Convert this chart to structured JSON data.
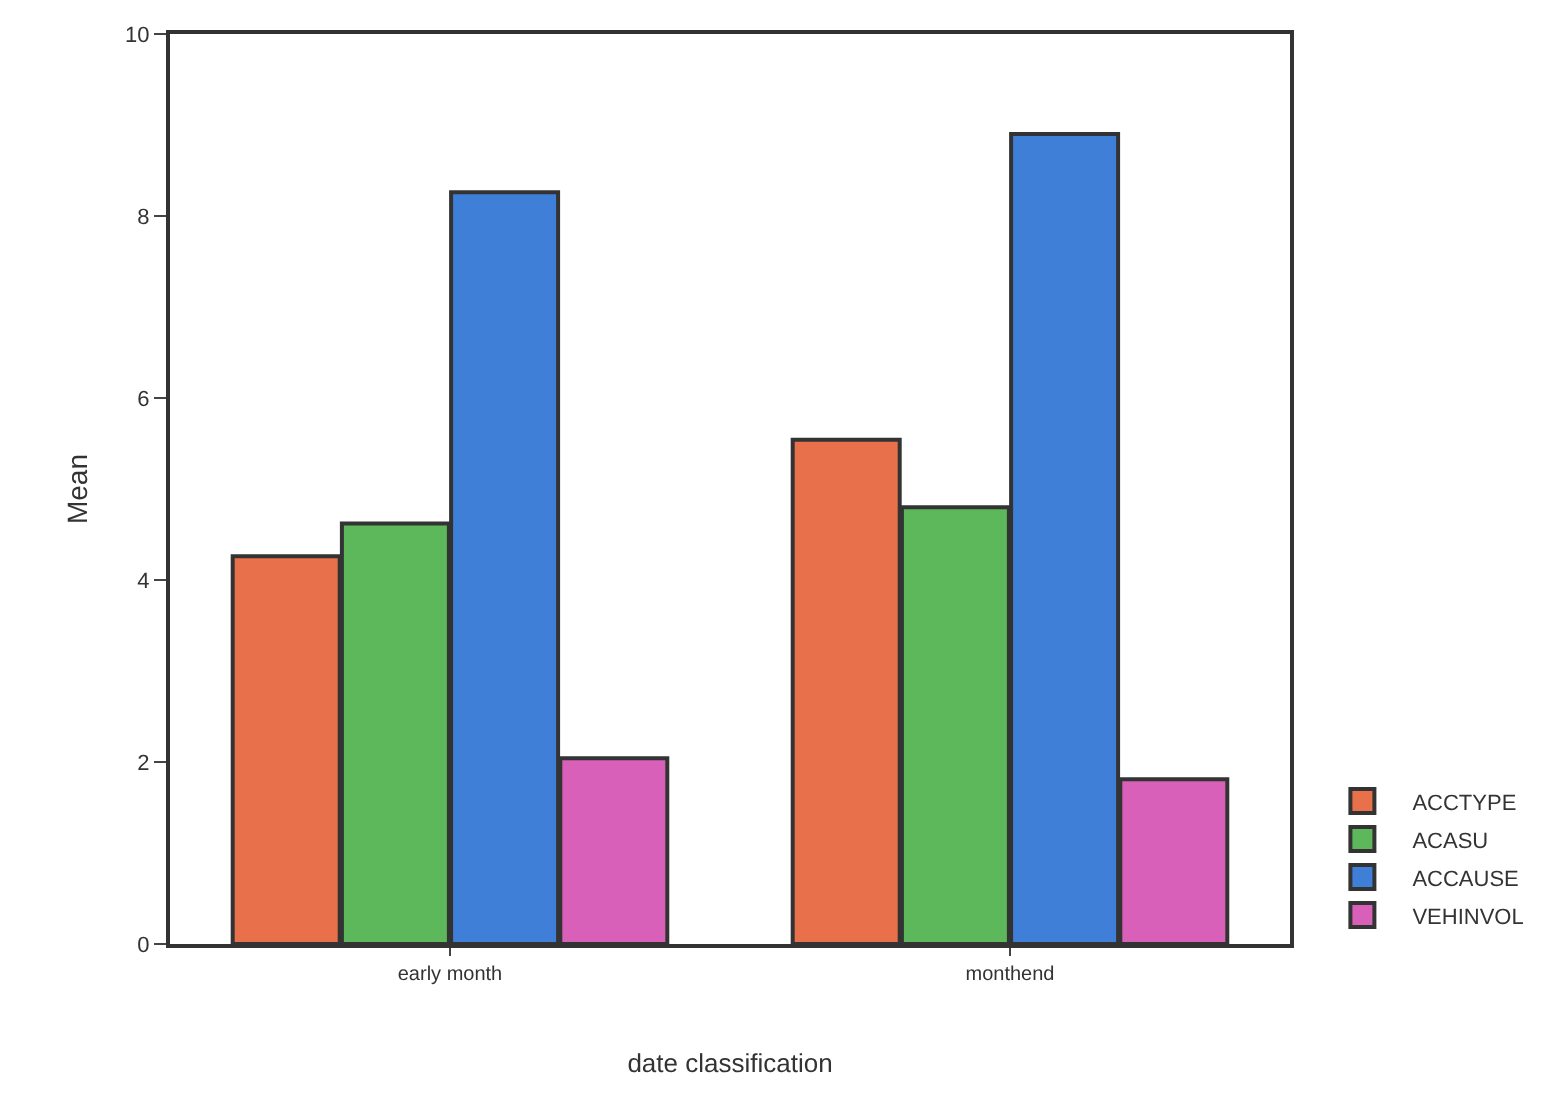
{
  "chart_data": {
    "type": "bar",
    "xlabel": "date classification",
    "ylabel": "Mean",
    "categories": [
      "early month",
      "monthend"
    ],
    "series": [
      {
        "name": "ACCTYPE",
        "color": "#e8704a",
        "values": [
          4.26,
          5.54
        ]
      },
      {
        "name": "ACASU",
        "color": "#5cb85a",
        "values": [
          4.62,
          4.8
        ]
      },
      {
        "name": "ACCAUSE",
        "color": "#3f7fd8",
        "values": [
          8.26,
          8.9
        ]
      },
      {
        "name": "VEHINVOL",
        "color": "#d860b8",
        "values": [
          2.04,
          1.81
        ]
      }
    ],
    "ylim": [
      0,
      10
    ],
    "yticks": [
      0,
      2,
      4,
      6,
      8,
      10
    ],
    "legend": "bottom right"
  }
}
